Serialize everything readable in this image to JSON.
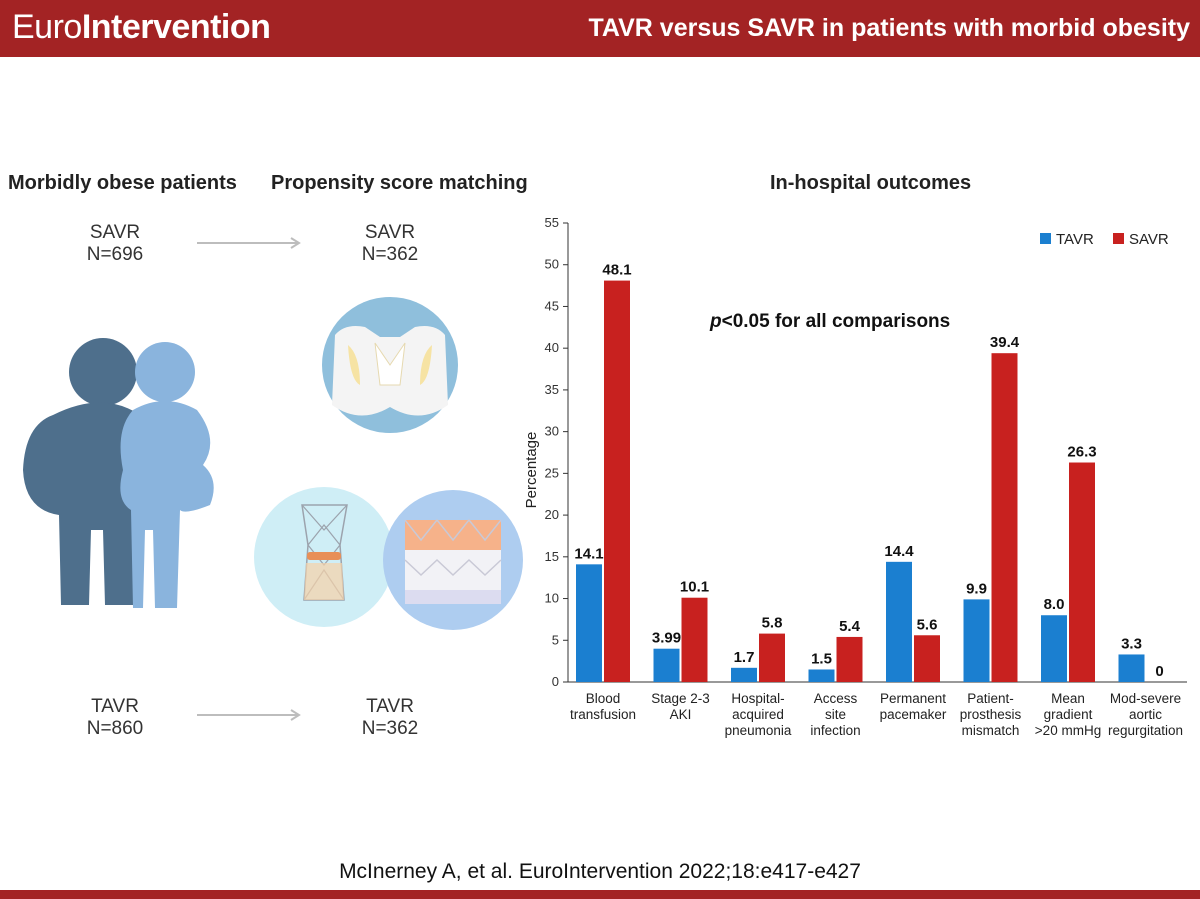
{
  "header": {
    "brand_part1": "Euro",
    "brand_part2": "Intervention",
    "title": "TAVR versus SAVR in patients with morbid obesity"
  },
  "columns": {
    "left": "Morbidly obese patients",
    "middle": "Propensity score matching",
    "right": "In-hospital outcomes"
  },
  "groups": {
    "savr_before": {
      "name": "SAVR",
      "n": "N=696"
    },
    "savr_after": {
      "name": "SAVR",
      "n": "N=362"
    },
    "tavr_before": {
      "name": "TAVR",
      "n": "N=860"
    },
    "tavr_after": {
      "name": "TAVR",
      "n": "N=362"
    }
  },
  "icons": [
    "obese-patients-icon",
    "surgical-valve-icon",
    "self-expanding-valve-icon",
    "balloon-expandable-valve-icon"
  ],
  "citation": "McInerney A, et al. EuroIntervention 2022;18:e417-e427",
  "colors": {
    "brand": "#a32324",
    "tavr": "#1b7fd0",
    "savr": "#c8211f"
  },
  "chart_data": {
    "type": "bar",
    "annotation_italic": "p",
    "annotation_rest": "<0.05 for all comparisons",
    "ylabel": "Percentage",
    "ylim": [
      0,
      55
    ],
    "yticks": [
      "0",
      "5",
      "10",
      "15",
      "20",
      "25",
      "30",
      "35",
      "40",
      "45",
      "50",
      "55"
    ],
    "categories": [
      [
        "Blood",
        "transfusion"
      ],
      [
        "Stage 2-3",
        "AKI"
      ],
      [
        "Hospital-",
        "acquired",
        "pneumonia"
      ],
      [
        "Access",
        "site",
        "infection"
      ],
      [
        "Permanent",
        "pacemaker"
      ],
      [
        "Patient-",
        "prosthesis",
        "mismatch"
      ],
      [
        "Mean",
        "gradient",
        ">20 mmHg"
      ],
      [
        "Mod-severe",
        "aortic",
        "regurgitation"
      ]
    ],
    "series": [
      {
        "name": "TAVR",
        "color": "#1b7fd0",
        "values": [
          14.1,
          3.99,
          1.7,
          1.5,
          14.4,
          9.9,
          8.0,
          3.3
        ],
        "labels": [
          "14.1",
          "3.99",
          "1.7",
          "1.5",
          "14.4",
          "9.9",
          "8.0",
          "3.3"
        ]
      },
      {
        "name": "SAVR",
        "color": "#c8211f",
        "values": [
          48.1,
          10.1,
          5.8,
          5.4,
          5.6,
          39.4,
          26.3,
          0
        ],
        "labels": [
          "48.1",
          "10.1",
          "5.8",
          "5.4",
          "5.6",
          "39.4",
          "26.3",
          "0"
        ]
      }
    ],
    "legend_position": "top-right",
    "grid": false
  }
}
